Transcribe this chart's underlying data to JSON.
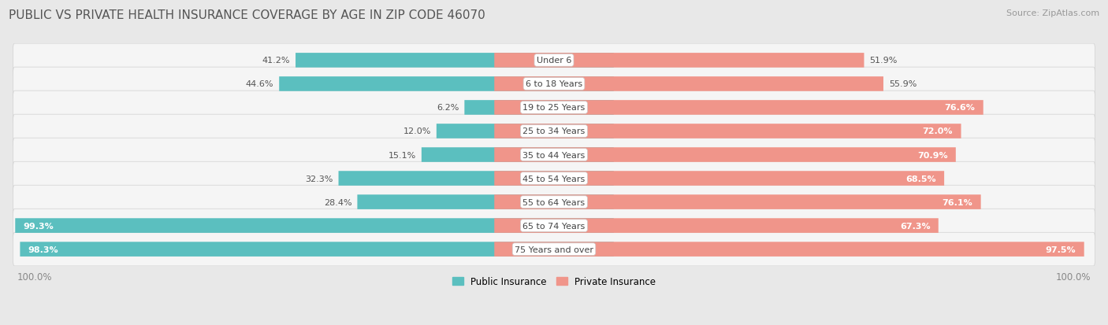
{
  "title": "PUBLIC VS PRIVATE HEALTH INSURANCE COVERAGE BY AGE IN ZIP CODE 46070",
  "source": "Source: ZipAtlas.com",
  "categories": [
    "Under 6",
    "6 to 18 Years",
    "19 to 25 Years",
    "25 to 34 Years",
    "35 to 44 Years",
    "45 to 54 Years",
    "55 to 64 Years",
    "65 to 74 Years",
    "75 Years and over"
  ],
  "public_values": [
    41.2,
    44.6,
    6.2,
    12.0,
    15.1,
    32.3,
    28.4,
    99.3,
    98.3
  ],
  "private_values": [
    51.9,
    55.9,
    76.6,
    72.0,
    70.9,
    68.5,
    76.1,
    67.3,
    97.5
  ],
  "public_color": "#5bbfbf",
  "private_color": "#f0958a",
  "bg_color": "#e8e8e8",
  "row_bg_color": "#f5f5f5",
  "row_shadow_color": "#d0d0d0",
  "max_value": 100.0,
  "legend_public": "Public Insurance",
  "legend_private": "Private Insurance",
  "title_fontsize": 11,
  "source_fontsize": 8,
  "label_fontsize": 8.5,
  "category_fontsize": 8,
  "value_fontsize": 8
}
